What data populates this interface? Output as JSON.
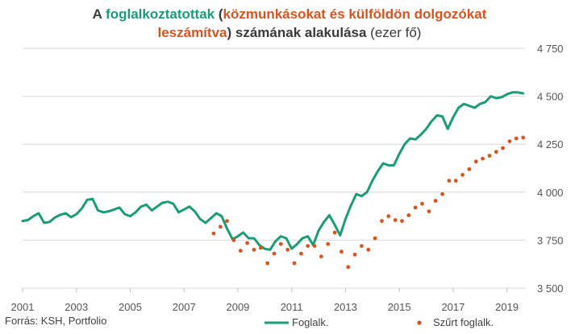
{
  "title": {
    "t1": "A ",
    "t2": "foglalkoztatottak",
    "t3": " (",
    "t4": "közmunkásokat és külföldön dolgozókat",
    "t5": "leszámítva",
    "t6": ")  számának alakulása",
    "t7": " (ezer fő)"
  },
  "source": "Forrás: KSH, Portfolio",
  "colors": {
    "green": "#1a9c78",
    "orange": "#d9531e",
    "dark": "#3a3a3a"
  },
  "chart_data": {
    "type": "line",
    "title": "A foglalkoztatottak (közmunkásokat és külföldön dolgozókat leszámítva) számának alakulása (ezer fő)",
    "xlabel": "",
    "ylabel": "",
    "xlim": [
      2001,
      2019.7
    ],
    "ylim": [
      3500,
      4750
    ],
    "y_ticks": [
      "3 500",
      "3 750",
      "4 000",
      "4 250",
      "4 500",
      "4 750"
    ],
    "y_tick_values": [
      3500,
      3750,
      4000,
      4250,
      4500,
      4750
    ],
    "x_ticks": [
      "2001",
      "2003",
      "2005",
      "2007",
      "2009",
      "2011",
      "2013",
      "2015",
      "2017",
      "2019"
    ],
    "x_tick_values": [
      2001,
      2003,
      2005,
      2007,
      2009,
      2011,
      2013,
      2015,
      2017,
      2019
    ],
    "y_axis_position": "right",
    "grid": "horizontal",
    "legend": "bottom",
    "series": [
      {
        "name": "Foglalk.",
        "style": "line",
        "color": "#1a9c78",
        "x": [
          2001.0,
          2001.2,
          2001.4,
          2001.6,
          2001.8,
          2002.0,
          2002.2,
          2002.4,
          2002.6,
          2002.8,
          2003.0,
          2003.2,
          2003.4,
          2003.6,
          2003.8,
          2004.0,
          2004.2,
          2004.4,
          2004.6,
          2004.8,
          2005.0,
          2005.2,
          2005.4,
          2005.6,
          2005.8,
          2006.0,
          2006.2,
          2006.4,
          2006.6,
          2006.8,
          2007.0,
          2007.2,
          2007.4,
          2007.6,
          2007.8,
          2008.0,
          2008.2,
          2008.4,
          2008.6,
          2008.8,
          2009.0,
          2009.2,
          2009.4,
          2009.6,
          2009.8,
          2010.0,
          2010.2,
          2010.4,
          2010.6,
          2010.8,
          2011.0,
          2011.2,
          2011.4,
          2011.6,
          2011.8,
          2012.0,
          2012.2,
          2012.4,
          2012.6,
          2012.8,
          2013.0,
          2013.2,
          2013.4,
          2013.6,
          2013.8,
          2014.0,
          2014.2,
          2014.4,
          2014.6,
          2014.8,
          2015.0,
          2015.2,
          2015.4,
          2015.6,
          2015.8,
          2016.0,
          2016.2,
          2016.4,
          2016.6,
          2016.8,
          2017.0,
          2017.2,
          2017.4,
          2017.6,
          2017.8,
          2018.0,
          2018.2,
          2018.4,
          2018.6,
          2018.8,
          2019.0,
          2019.2,
          2019.4,
          2019.6
        ],
        "values": [
          3850,
          3855,
          3875,
          3890,
          3840,
          3845,
          3868,
          3882,
          3890,
          3870,
          3885,
          3915,
          3960,
          3965,
          3905,
          3895,
          3900,
          3910,
          3920,
          3885,
          3875,
          3895,
          3925,
          3935,
          3905,
          3925,
          3945,
          3950,
          3940,
          3895,
          3910,
          3925,
          3900,
          3860,
          3840,
          3865,
          3890,
          3875,
          3810,
          3755,
          3770,
          3790,
          3760,
          3760,
          3725,
          3705,
          3700,
          3745,
          3770,
          3760,
          3705,
          3730,
          3760,
          3770,
          3725,
          3800,
          3845,
          3880,
          3830,
          3775,
          3860,
          3930,
          3990,
          3980,
          4000,
          4060,
          4110,
          4150,
          4140,
          4140,
          4200,
          4250,
          4280,
          4275,
          4300,
          4330,
          4370,
          4400,
          4395,
          4330,
          4390,
          4440,
          4460,
          4450,
          4440,
          4460,
          4470,
          4500,
          4490,
          4495,
          4510,
          4520,
          4520,
          4515
        ]
      },
      {
        "name": "Szűrt foglalk.",
        "style": "dots",
        "color": "#d9531e",
        "x": [
          2008.1,
          2008.35,
          2008.6,
          2008.85,
          2009.1,
          2009.35,
          2009.6,
          2009.85,
          2010.1,
          2010.35,
          2010.6,
          2010.85,
          2011.1,
          2011.35,
          2011.6,
          2011.85,
          2012.1,
          2012.35,
          2012.6,
          2012.85,
          2013.1,
          2013.35,
          2013.6,
          2013.85,
          2014.1,
          2014.35,
          2014.6,
          2014.85,
          2015.1,
          2015.35,
          2015.6,
          2015.85,
          2016.1,
          2016.35,
          2016.6,
          2016.85,
          2017.1,
          2017.35,
          2017.6,
          2017.85,
          2018.1,
          2018.35,
          2018.6,
          2018.85,
          2019.1,
          2019.35,
          2019.6
        ],
        "values": [
          3785,
          3820,
          3850,
          3750,
          3695,
          3735,
          3700,
          3710,
          3630,
          3680,
          3730,
          3700,
          3630,
          3680,
          3720,
          3720,
          3665,
          3730,
          3790,
          3690,
          3610,
          3675,
          3720,
          3700,
          3760,
          3850,
          3875,
          3855,
          3850,
          3880,
          3920,
          3940,
          3900,
          3955,
          3990,
          4060,
          4060,
          4090,
          4120,
          4160,
          4175,
          4190,
          4210,
          4230,
          4265,
          4280,
          4285
        ]
      }
    ]
  }
}
